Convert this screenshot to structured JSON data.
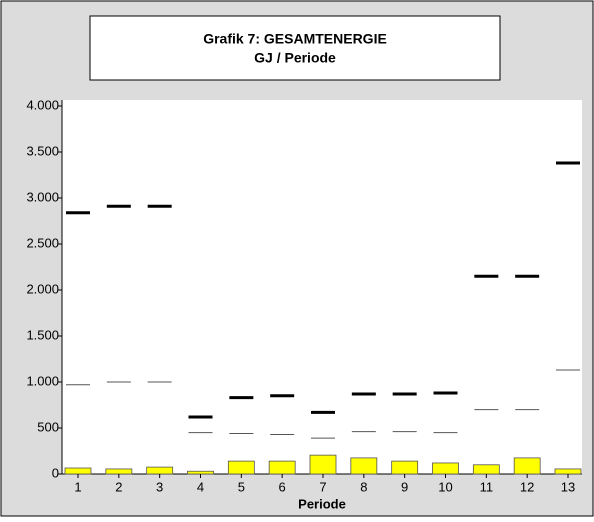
{
  "chart_data": {
    "type": "bar",
    "title": "Grafik 7: GESAMTENERGIE",
    "subtitle": "GJ / Periode",
    "x_label": "Periode",
    "categories": [
      "1",
      "2",
      "3",
      "4",
      "5",
      "6",
      "7",
      "8",
      "9",
      "10",
      "11",
      "12",
      "13"
    ],
    "series": [
      {
        "color": "#ffff00",
        "values": [
          65,
          55,
          75,
          30,
          140,
          140,
          205,
          175,
          140,
          120,
          100,
          175,
          55
        ]
      },
      {
        "color": "#000000",
        "values": [
          2840,
          2910,
          2910,
          620,
          830,
          850,
          670,
          870,
          870,
          880,
          2150,
          2150,
          3380
        ]
      },
      {
        "color": "#555555",
        "values": [
          970,
          1000,
          1000,
          450,
          440,
          430,
          390,
          460,
          460,
          450,
          700,
          700,
          1130
        ]
      }
    ],
    "ylim": [
      0,
      4000
    ],
    "yticks": [
      0,
      500,
      {
        "value": 1000,
        "label": "1.000"
      },
      {
        "value": 1500,
        "label": "1.500"
      },
      {
        "value": 2000,
        "label": "2.000"
      },
      {
        "value": 2500,
        "label": "2.500"
      },
      {
        "value": 3000,
        "label": "3.000"
      },
      {
        "value": 3500,
        "label": "3.500"
      },
      {
        "value": 4000,
        "label": "4.000"
      }
    ]
  }
}
